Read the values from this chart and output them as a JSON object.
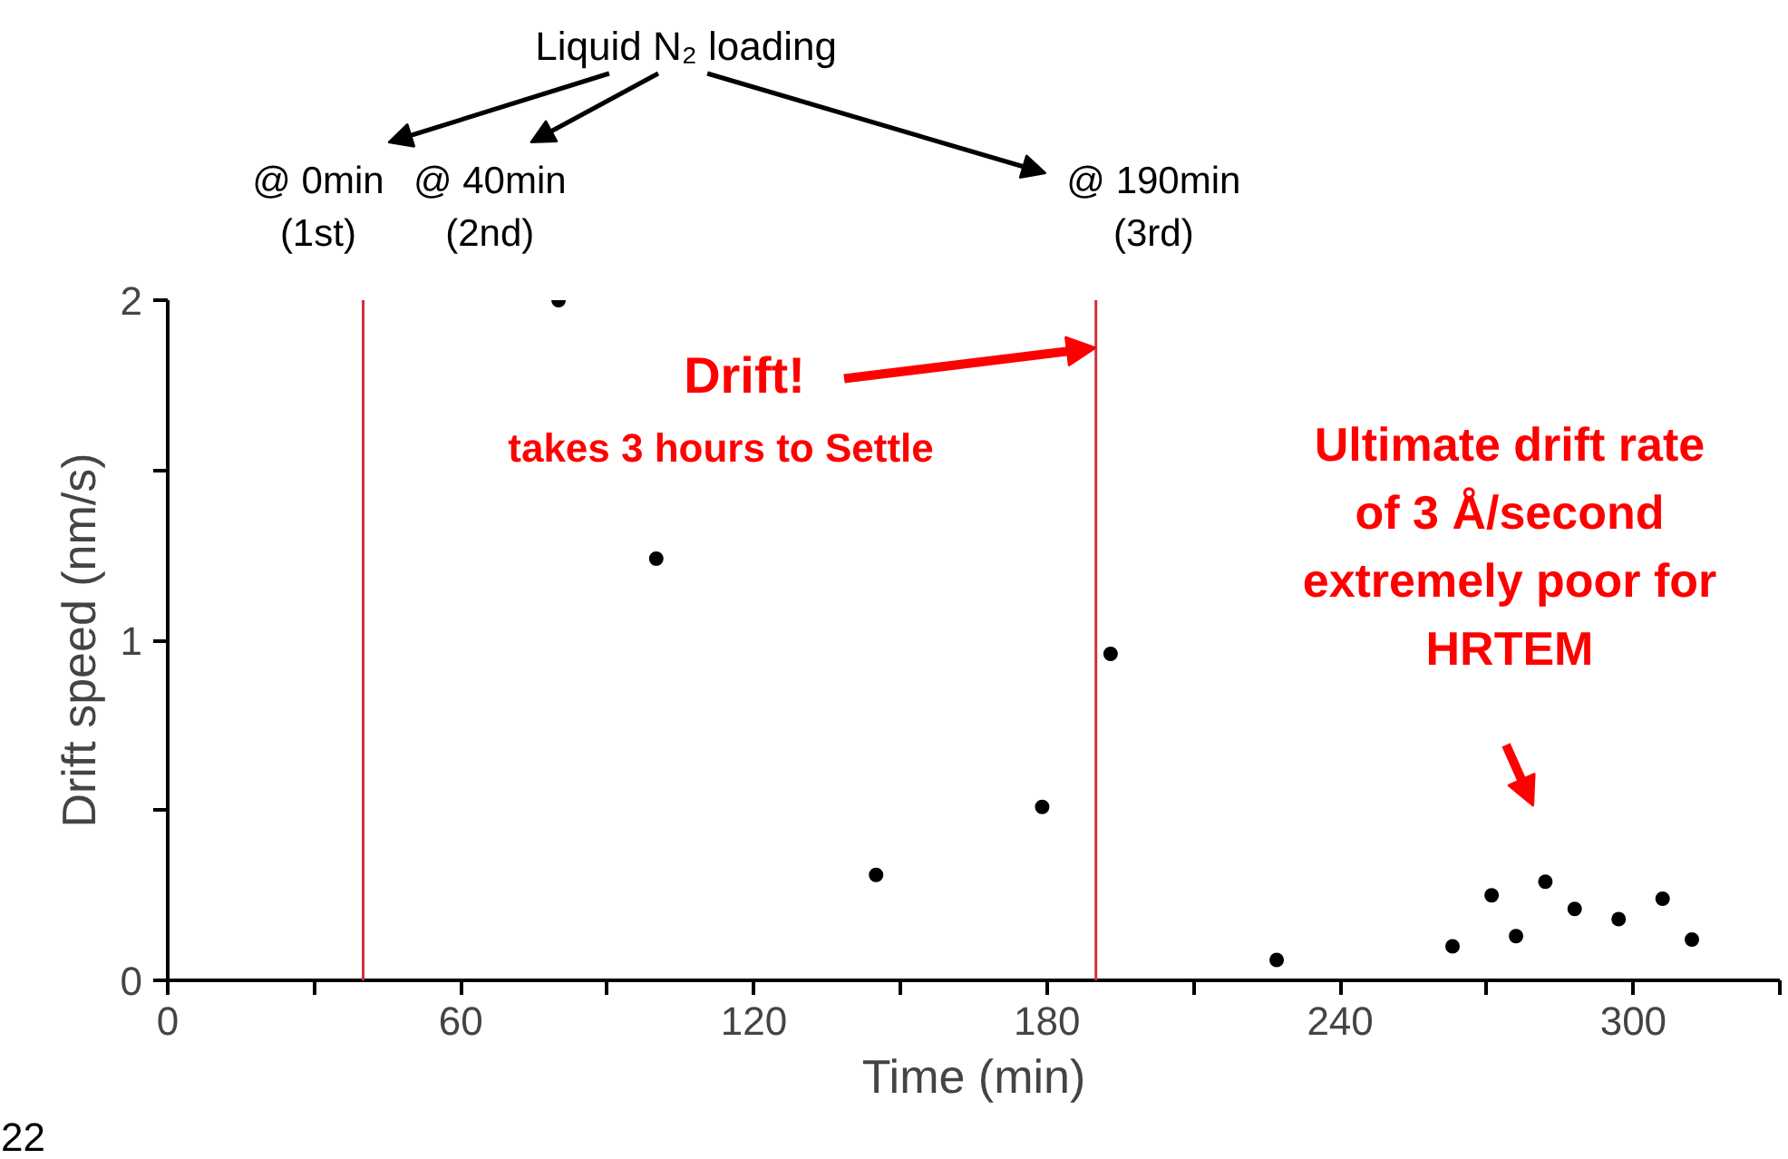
{
  "chart_data": {
    "type": "scatter",
    "xlabel": "Time (min)",
    "ylabel": "Drift speed (nm/s)",
    "x": [
      80,
      100,
      145,
      179,
      193,
      227,
      263,
      271,
      276,
      282,
      288,
      297,
      306,
      312
    ],
    "values": [
      2.0,
      1.24,
      0.31,
      0.51,
      0.96,
      0.06,
      0.1,
      0.25,
      0.13,
      0.29,
      0.21,
      0.18,
      0.24,
      0.12
    ],
    "color": "#000000",
    "marker": "circle",
    "grid": false,
    "xlim": [
      0,
      330
    ],
    "ylim": [
      0,
      2
    ],
    "xticks": [
      0,
      {
        "value": 30,
        "label": null
      },
      60,
      {
        "value": 90,
        "label": null
      },
      120,
      {
        "value": 150,
        "label": null
      },
      180,
      {
        "value": 210,
        "label": null
      },
      240,
      {
        "value": 270,
        "label": null
      },
      300,
      {
        "value": 330,
        "label": null
      }
    ],
    "yticks": [
      0,
      {
        "value": 0.5,
        "label": null
      },
      1,
      {
        "value": 1.5,
        "label": null
      },
      2
    ],
    "ref_lines": [
      {
        "axis": "x",
        "value": 40,
        "color": "#d0303c"
      },
      {
        "axis": "x",
        "value": 190,
        "color": "#d0303c"
      }
    ],
    "annotations": [
      "Liquid N₂ loading",
      "@ 0min\n(1st)",
      "@ 40min\n(2nd)",
      "@ 190min\n(3rd)",
      {
        "text": "Drift!",
        "x": 190,
        "y": 1.86
      },
      "takes 3 hours to Settle",
      "Ultimate drift rate\nof 3 Å/second\nextremely poor for\nHRTEM",
      "22"
    ]
  }
}
